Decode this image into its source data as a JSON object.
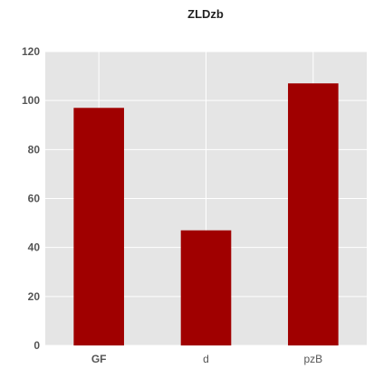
{
  "chart_data": {
    "type": "bar",
    "title": "ZLDzb",
    "xlabel": "",
    "ylabel": "",
    "categories": [
      "GF",
      "d",
      "pzB"
    ],
    "series": [
      {
        "values": [
          97,
          47,
          107
        ]
      }
    ],
    "ylim": [
      0,
      120
    ],
    "yticks": [
      0,
      20,
      40,
      60,
      80,
      100,
      120
    ],
    "grid": true,
    "legend": "none",
    "colors": {
      "bar": "#a00000",
      "plot_background": "#e5e5e5",
      "grid": "#ffffff",
      "tick_text": "#555555",
      "title_text": "#222222"
    }
  }
}
